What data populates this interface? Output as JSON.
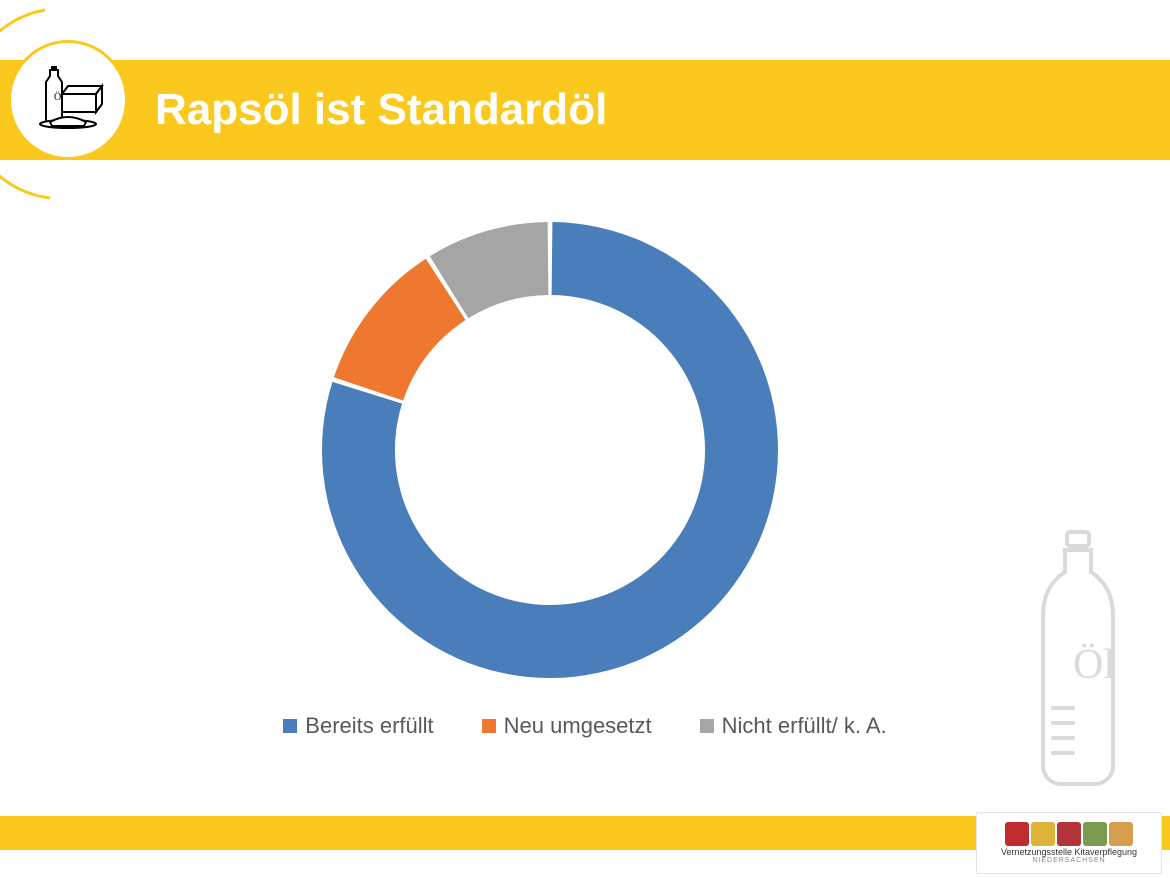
{
  "header": {
    "title": "Rapsöl ist Standardöl",
    "bar_color": "#fbc91d",
    "title_color": "#ffffff",
    "title_fontsize": 44
  },
  "chart": {
    "type": "donut",
    "inner_radius_ratio": 0.68,
    "background_color": "#ffffff",
    "segments": [
      {
        "label": "Bereits erfüllt",
        "value": 80,
        "color": "#4a7ebb"
      },
      {
        "label": "Neu umgesetzt",
        "value": 11,
        "color": "#ee7830"
      },
      {
        "label": "Nicht erfüllt/ k. A.",
        "value": 9,
        "color": "#a5a5a5"
      }
    ],
    "start_angle_deg": -90,
    "gap_deg": 1.2
  },
  "legend": {
    "fontsize": 22,
    "text_color": "#595959",
    "items": [
      {
        "label": "Bereits erfüllt",
        "color": "#4a7ebb"
      },
      {
        "label": "Neu umgesetzt",
        "color": "#ee7830"
      },
      {
        "label": "Nicht erfüllt/ k. A.",
        "color": "#a5a5a5"
      }
    ]
  },
  "watermark": {
    "bottle_label": "Öl",
    "stroke_color": "#dadada"
  },
  "footer": {
    "bar_color": "#fbc91d",
    "logo_text": "Vernetzungsstelle Kitaverpflegung",
    "logo_sub": "NIEDERSACHSEN",
    "logo_icon_colors": [
      "#be2d2f",
      "#deb33a",
      "#b23438",
      "#7b9b4f",
      "#d69e4f"
    ]
  }
}
